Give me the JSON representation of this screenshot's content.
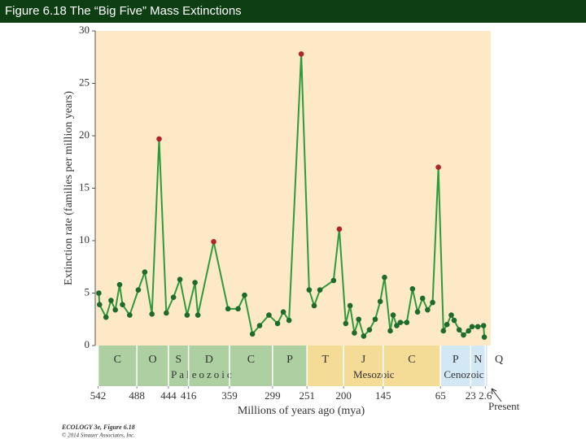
{
  "header": {
    "title": "Figure 6.18 The “Big Five” Mass Extinctions"
  },
  "chart_data": {
    "type": "line",
    "y_label": "Extinction rate (families per million years)",
    "x_label": "Millions of years ago (mya)",
    "annotation": "Present",
    "footer": [
      "ECOLOGY 3e, Figure 6.18",
      "© 2014 Sinauer Associates, Inc."
    ],
    "xlim": [
      546,
      -5
    ],
    "ylim": [
      0,
      30
    ],
    "yticks": [
      0,
      5,
      10,
      15,
      20,
      25,
      30
    ],
    "xticks": [
      542,
      488,
      444,
      416,
      359,
      299,
      251,
      200,
      145,
      65,
      23,
      2.6
    ],
    "line_color": "#2e9a3e",
    "marker_color": "#1e6b2c",
    "highlight_color": "#b0242a",
    "highlight": [
      11,
      18,
      28,
      33,
      53
    ],
    "x": [
      541,
      540,
      531,
      524,
      518,
      512,
      508,
      498,
      486,
      477,
      467,
      457,
      447,
      437,
      428,
      418,
      407,
      403,
      381,
      361,
      347,
      338,
      327,
      317,
      304,
      292,
      284,
      276,
      259,
      248,
      241,
      233,
      214,
      206,
      197,
      191,
      185,
      179,
      172,
      164,
      156,
      149,
      143,
      135,
      131,
      126,
      121,
      112,
      104,
      97,
      90,
      83,
      76,
      68,
      61,
      56,
      50,
      46,
      39,
      33,
      26,
      21,
      13,
      5,
      4
    ],
    "values": [
      5.0,
      3.9,
      2.7,
      4.3,
      3.4,
      5.8,
      3.9,
      2.9,
      5.3,
      7.0,
      3.0,
      19.7,
      3.1,
      4.6,
      6.3,
      2.9,
      6.0,
      2.9,
      9.9,
      3.5,
      3.5,
      4.8,
      1.1,
      1.9,
      2.9,
      2.1,
      3.2,
      2.4,
      27.8,
      5.3,
      3.8,
      5.3,
      6.2,
      11.1,
      2.1,
      3.8,
      1.2,
      2.5,
      0.9,
      1.5,
      2.5,
      4.2,
      6.5,
      1.4,
      2.9,
      1.9,
      2.2,
      2.2,
      5.4,
      3.2,
      4.5,
      3.4,
      4.1,
      17.0,
      1.4,
      2.0,
      2.9,
      2.4,
      1.5,
      1.0,
      1.4,
      1.8,
      1.8,
      1.9,
      0.8
    ],
    "periods": [
      {
        "label": "C",
        "start": 542,
        "end": 488
      },
      {
        "label": "O",
        "start": 488,
        "end": 444
      },
      {
        "label": "S",
        "start": 444,
        "end": 416
      },
      {
        "label": "D",
        "start": 416,
        "end": 359
      },
      {
        "label": "C",
        "start": 359,
        "end": 299
      },
      {
        "label": "P",
        "start": 299,
        "end": 251
      },
      {
        "label": "T",
        "start": 251,
        "end": 200
      },
      {
        "label": "J",
        "start": 200,
        "end": 145
      },
      {
        "label": "C",
        "start": 145,
        "end": 65
      },
      {
        "label": "P",
        "start": 65,
        "end": 23
      },
      {
        "label": "N",
        "start": 23,
        "end": 2.6
      },
      {
        "label": "Q",
        "start": 2.6,
        "end": 0
      }
    ],
    "eras": [
      {
        "label": "Paleozoic",
        "start": 542,
        "end": 251,
        "color": "#acd0a2"
      },
      {
        "label": "Mesozoic",
        "start": 251,
        "end": 65,
        "color": "#f4dc97"
      },
      {
        "label": "Cenozoic",
        "start": 65,
        "end": 0,
        "color": "#d2e8f4"
      }
    ],
    "plot_background": "#fde9c6"
  }
}
